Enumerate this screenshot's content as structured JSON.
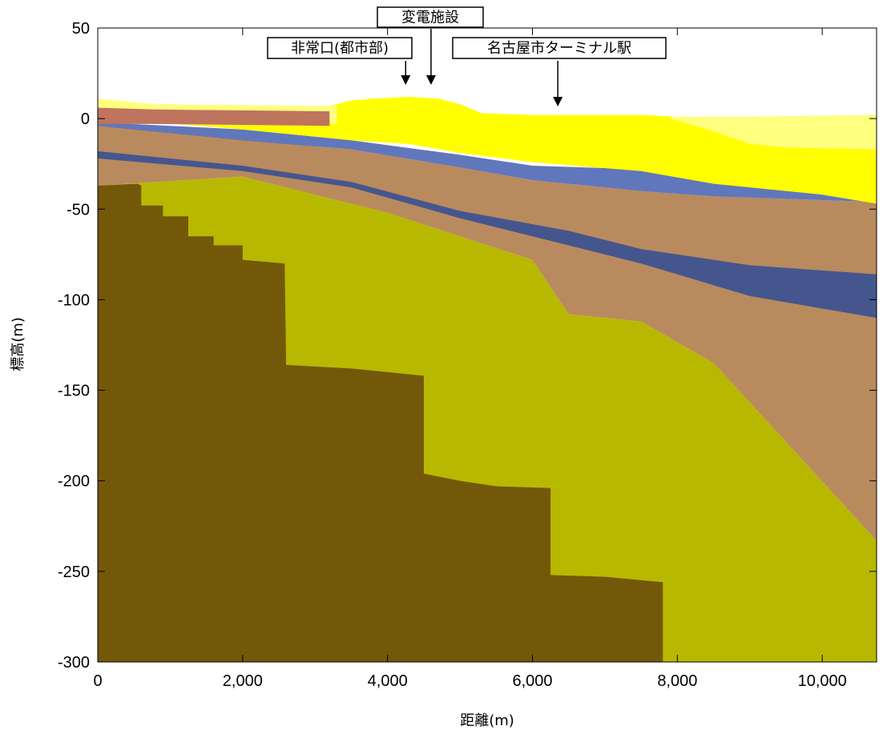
{
  "chart_data": {
    "type": "area",
    "xlabel": "距離(m)",
    "ylabel": "標高(m)",
    "xlim": [
      0,
      10750
    ],
    "ylim": [
      -300,
      50
    ],
    "x_ticks": [
      0,
      2000,
      4000,
      6000,
      8000,
      10000
    ],
    "x_tick_labels": [
      "0",
      "2,000",
      "4,000",
      "6,000",
      "8,000",
      "10,000"
    ],
    "y_ticks": [
      50,
      0,
      -50,
      -100,
      -150,
      -200,
      -250,
      -300
    ],
    "y_tick_labels": [
      "50",
      "0",
      "-50",
      "-100",
      "-150",
      "-200",
      "-250",
      "-300"
    ],
    "colors": {
      "bedrock": "#735809",
      "olive": "#b9b800",
      "tan": "#b98a5e",
      "darkblue": "#45568e",
      "blue": "#6177bb",
      "yellow": "#ffff00",
      "paleyellow": "#ffff80",
      "brick": "#bf745e"
    },
    "layers": [
      {
        "color_key": "olive",
        "points": [
          [
            0,
            -37
          ],
          [
            2000,
            -32
          ],
          [
            4000,
            -52
          ],
          [
            6000,
            -78
          ],
          [
            6500,
            -108
          ],
          [
            7500,
            -112
          ],
          [
            8500,
            -135
          ],
          [
            10750,
            -233
          ],
          [
            10750,
            -300
          ],
          [
            0,
            -300
          ]
        ]
      },
      {
        "color_key": "tan",
        "points": [
          [
            0,
            -18
          ],
          [
            2000,
            -20
          ],
          [
            3500,
            -28
          ],
          [
            5000,
            -45
          ],
          [
            6000,
            -56
          ],
          [
            7500,
            -62
          ],
          [
            8500,
            -70
          ],
          [
            10750,
            -68
          ],
          [
            10750,
            -233
          ],
          [
            8500,
            -135
          ],
          [
            7500,
            -112
          ],
          [
            6500,
            -108
          ],
          [
            6000,
            -78
          ],
          [
            4000,
            -52
          ],
          [
            2000,
            -32
          ],
          [
            0,
            -37
          ]
        ]
      },
      {
        "color_key": "darkblue",
        "points": [
          [
            0,
            -4
          ],
          [
            2000,
            -10
          ],
          [
            3500,
            -18
          ],
          [
            5000,
            -28
          ],
          [
            6000,
            -37
          ],
          [
            7500,
            -46
          ],
          [
            8500,
            -50
          ],
          [
            10750,
            -52
          ],
          [
            10750,
            -110
          ],
          [
            9000,
            -98
          ],
          [
            7500,
            -80
          ],
          [
            6500,
            -70
          ],
          [
            5000,
            -55
          ],
          [
            3500,
            -38
          ],
          [
            2000,
            -29
          ],
          [
            0,
            -22
          ]
        ]
      },
      {
        "color_key": "tan",
        "points": [
          [
            0,
            -4
          ],
          [
            2000,
            -12
          ],
          [
            3500,
            -17
          ],
          [
            5000,
            -27
          ],
          [
            6000,
            -34
          ],
          [
            7500,
            -40
          ],
          [
            8500,
            -43
          ],
          [
            10750,
            -46
          ],
          [
            10750,
            -86
          ],
          [
            9000,
            -81
          ],
          [
            7500,
            -72
          ],
          [
            6500,
            -62
          ],
          [
            5000,
            -51
          ],
          [
            3500,
            -35
          ],
          [
            2000,
            -26
          ],
          [
            0,
            -18
          ]
        ]
      },
      {
        "color_key": "blue",
        "points": [
          [
            0,
            -2
          ],
          [
            2000,
            -6
          ],
          [
            3500,
            -12
          ],
          [
            5000,
            -20
          ],
          [
            6000,
            -26
          ],
          [
            7500,
            -28
          ],
          [
            8500,
            -30
          ],
          [
            10750,
            -30
          ],
          [
            10750,
            -46
          ],
          [
            8500,
            -43
          ],
          [
            7500,
            -40
          ],
          [
            6000,
            -34
          ],
          [
            5000,
            -27
          ],
          [
            3500,
            -17
          ],
          [
            2000,
            -12
          ],
          [
            0,
            -4
          ]
        ]
      },
      {
        "color_key": "yellow",
        "points": [
          [
            800,
            6
          ],
          [
            3200,
            7
          ],
          [
            3500,
            10
          ],
          [
            3800,
            11
          ],
          [
            4300,
            12
          ],
          [
            4700,
            11
          ],
          [
            5000,
            8
          ],
          [
            5300,
            3
          ],
          [
            6000,
            2
          ],
          [
            7500,
            2
          ],
          [
            8000,
            1
          ],
          [
            9000,
            1
          ],
          [
            10750,
            2
          ],
          [
            10750,
            -47
          ],
          [
            10000,
            -42
          ],
          [
            8500,
            -36
          ],
          [
            7500,
            -29
          ],
          [
            6000,
            -24
          ],
          [
            5000,
            -19
          ],
          [
            4300,
            -14
          ],
          [
            3500,
            -12
          ],
          [
            2000,
            -6
          ],
          [
            800,
            -2
          ]
        ]
      },
      {
        "color_key": "paleyellow",
        "points": [
          [
            0,
            11
          ],
          [
            800,
            8
          ],
          [
            3000,
            7
          ],
          [
            3300,
            7
          ],
          [
            3300,
            -3
          ],
          [
            800,
            -2
          ],
          [
            0,
            -2
          ]
        ]
      },
      {
        "color_key": "paleyellow",
        "points": [
          [
            7900,
            1
          ],
          [
            9000,
            1
          ],
          [
            10750,
            2
          ],
          [
            10750,
            -17
          ],
          [
            9500,
            -16
          ],
          [
            9000,
            -14
          ],
          [
            8500,
            -7
          ],
          [
            8000,
            -1
          ],
          [
            7900,
            0
          ]
        ]
      },
      {
        "color_key": "brick",
        "points": [
          [
            0,
            6
          ],
          [
            800,
            5
          ],
          [
            3200,
            4
          ],
          [
            3200,
            -4
          ],
          [
            800,
            -3
          ],
          [
            0,
            -3
          ]
        ]
      },
      {
        "color_key": "bedrock",
        "points": [
          [
            0,
            -37
          ],
          [
            550,
            -36
          ],
          [
            600,
            -37
          ],
          [
            600,
            -48
          ],
          [
            900,
            -48
          ],
          [
            900,
            -54
          ],
          [
            1250,
            -54
          ],
          [
            1250,
            -65
          ],
          [
            1600,
            -65
          ],
          [
            1600,
            -70
          ],
          [
            2000,
            -70
          ],
          [
            2000,
            -78
          ],
          [
            2580,
            -80
          ],
          [
            2600,
            -136
          ],
          [
            3500,
            -138
          ],
          [
            4000,
            -140
          ],
          [
            4500,
            -142
          ],
          [
            4500,
            -196
          ],
          [
            5000,
            -200
          ],
          [
            5500,
            -203
          ],
          [
            6250,
            -204
          ],
          [
            6250,
            -252
          ],
          [
            7000,
            -253
          ],
          [
            7800,
            -256
          ],
          [
            7800,
            -300
          ],
          [
            0,
            -300
          ]
        ]
      }
    ],
    "annotations": [
      {
        "text": "非常口(都市部)",
        "x": 4250
      },
      {
        "text": "変電施設",
        "x": 4600
      },
      {
        "text": "名古屋市ターミナル駅",
        "x": 6350
      }
    ]
  }
}
